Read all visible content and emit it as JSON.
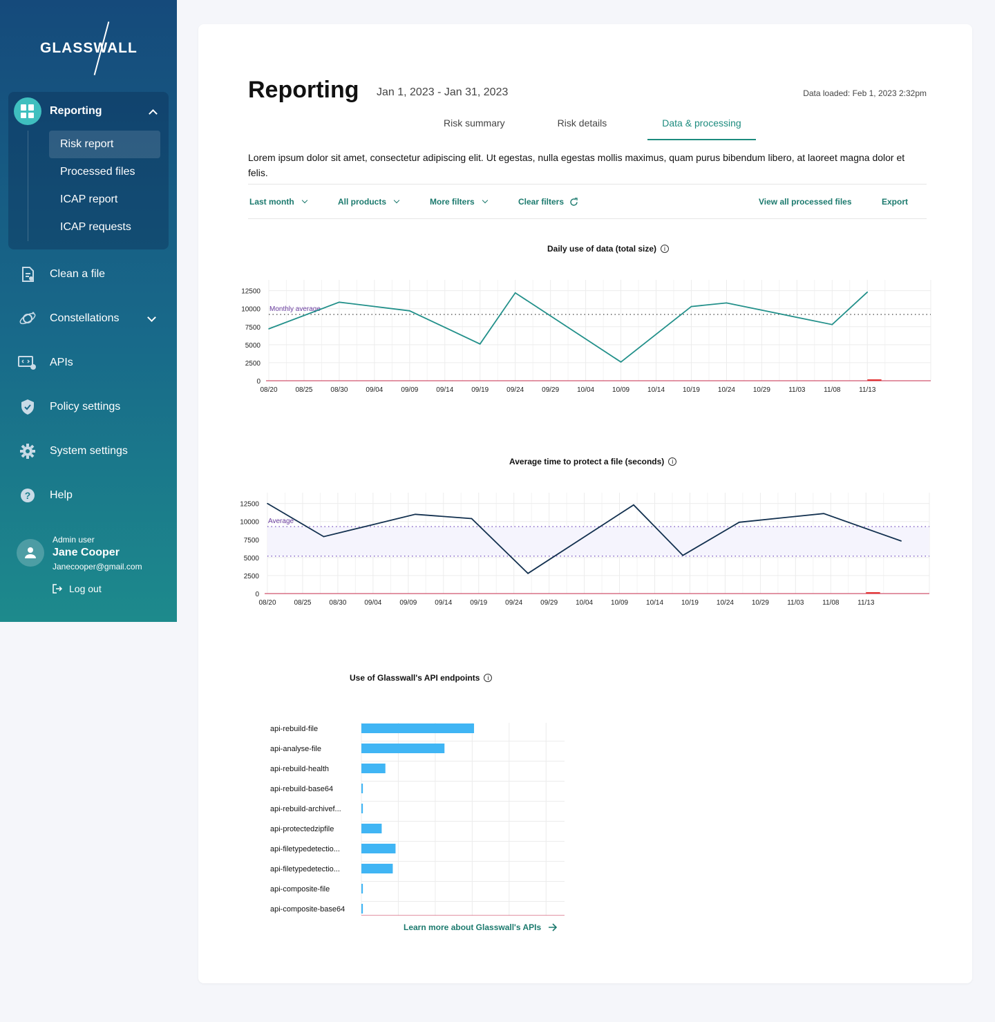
{
  "brand": {
    "logo_text": "GLASSWALL"
  },
  "sidebar": {
    "group": {
      "label": "Reporting",
      "items": [
        "Risk report",
        "Processed files",
        "ICAP report",
        "ICAP requests"
      ]
    },
    "items": [
      {
        "label": "Clean a file",
        "icon": "clean-file-icon"
      },
      {
        "label": "Constellations",
        "icon": "constellations-icon"
      },
      {
        "label": "APIs",
        "icon": "apis-icon"
      },
      {
        "label": "Policy settings",
        "icon": "shield-icon"
      },
      {
        "label": "System settings",
        "icon": "gear-icon"
      },
      {
        "label": "Help",
        "icon": "help-icon"
      }
    ],
    "user": {
      "role": "Admin user",
      "name": "Jane Cooper",
      "email": "Janecooper@gmail.com",
      "logout": "Log out"
    }
  },
  "header": {
    "title": "Reporting",
    "date_range": "Jan 1, 2023 - Jan 31, 2023",
    "data_loaded": "Data loaded: Feb 1, 2023 2:32pm"
  },
  "tabs": [
    "Risk summary",
    "Risk details",
    "Data & processing"
  ],
  "active_tab": "Data & processing",
  "description": "Lorem ipsum dolor sit amet, consectetur adipiscing elit. Ut egestas, nulla egestas mollis maximus, quam purus bibendum libero, at laoreet magna dolor et felis.",
  "filters": {
    "period": "Last month",
    "products": "All products",
    "more": "More filters",
    "clear": "Clear filters",
    "view_all": "View all processed files",
    "export": "Export"
  },
  "colors": {
    "accent": "#1c8b7e",
    "teal_line": "#22908a",
    "navy_line": "#12304f",
    "bar": "#40b5f4",
    "average": "#6b3fa0"
  },
  "chart_data": [
    {
      "type": "line",
      "title": "Daily use of data (total size)",
      "x": [
        "08/20",
        "08/25",
        "08/30",
        "09/04",
        "09/09",
        "09/14",
        "09/19",
        "09/24",
        "09/29",
        "10/04",
        "10/09",
        "10/14",
        "10/19",
        "10/24",
        "10/29",
        "11/03",
        "11/08",
        "11/13"
      ],
      "ticks_y": [
        0,
        2500,
        5000,
        7500,
        10000,
        12500
      ],
      "ylim": [
        0,
        14000
      ],
      "points": [
        {
          "x": "08/20",
          "y": 7200
        },
        {
          "x": "08/30",
          "y": 10900
        },
        {
          "x": "09/09",
          "y": 9700
        },
        {
          "x": "09/19",
          "y": 5100
        },
        {
          "x": "09/24",
          "y": 12200
        },
        {
          "x": "10/09",
          "y": 2600
        },
        {
          "x": "10/19",
          "y": 10300
        },
        {
          "x": "10/24",
          "y": 10800
        },
        {
          "x": "11/08",
          "y": 7800
        },
        {
          "x": "11/13",
          "y": 12300
        }
      ],
      "reference": {
        "label": "Monthly average",
        "y": 9200
      }
    },
    {
      "type": "line",
      "title": "Average time to protect a file (seconds)",
      "x": [
        "08/20",
        "08/25",
        "08/30",
        "09/04",
        "09/09",
        "09/14",
        "09/19",
        "09/24",
        "09/29",
        "10/04",
        "10/09",
        "10/14",
        "10/19",
        "10/24",
        "10/29",
        "11/03",
        "11/08",
        "11/13"
      ],
      "ticks_y": [
        0,
        2500,
        5000,
        7500,
        10000,
        12500
      ],
      "ylim": [
        0,
        14000
      ],
      "points": [
        {
          "x": "08/20",
          "y": 12500
        },
        {
          "x": "08/28",
          "y": 7900
        },
        {
          "x": "09/10",
          "y": 11000
        },
        {
          "x": "09/18",
          "y": 10400
        },
        {
          "x": "09/26",
          "y": 2800
        },
        {
          "x": "10/11",
          "y": 12300
        },
        {
          "x": "10/18",
          "y": 5300
        },
        {
          "x": "10/26",
          "y": 9900
        },
        {
          "x": "11/07",
          "y": 11100
        },
        {
          "x": "11/18",
          "y": 7300
        }
      ],
      "reference": {
        "label": "Average",
        "band": [
          5200,
          9300
        ]
      }
    },
    {
      "type": "bar",
      "orientation": "horizontal",
      "title": "Use of Glasswall's API endpoints",
      "categories": [
        "api-rebuild-file",
        "api-analyse-file",
        "api-rebuild-health",
        "api-rebuild-base64",
        "api-rebuild-archivef...",
        "api-protectedzipfile",
        "api-filetypedetectio...",
        "api-filetypedetectio...",
        "api-composite-file",
        "api-composite-base64"
      ],
      "values": [
        6100,
        4500,
        1300,
        80,
        80,
        1100,
        1850,
        1700,
        80,
        80
      ],
      "ticks_x": [
        "0",
        "2K",
        "4K",
        "6K",
        "8K",
        "10K"
      ],
      "xlim": [
        0,
        11000
      ]
    }
  ],
  "learn_more": "Learn more about Glasswall's APIs"
}
